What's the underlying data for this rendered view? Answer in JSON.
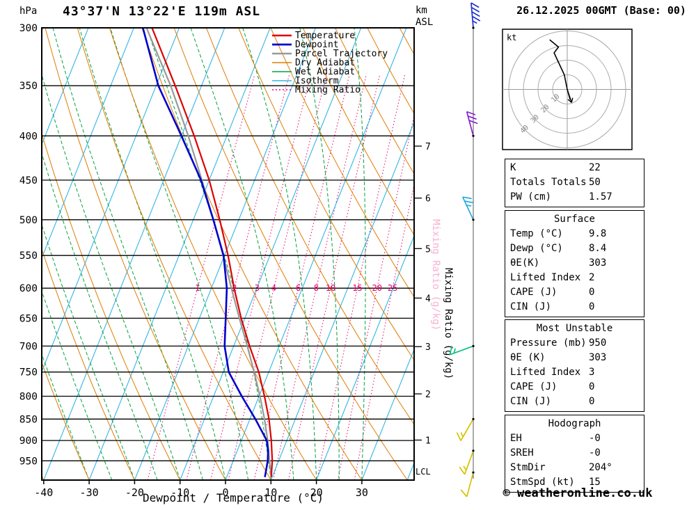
{
  "header": {
    "pressure_unit": "hPa",
    "station_title": "43°37'N 13°22'E 119m ASL",
    "altitude_unit_line1": "km",
    "altitude_unit_line2": "ASL",
    "run_title": "26.12.2025 00GMT (Base: 00)"
  },
  "chart_data": {
    "type": "line",
    "title": "Skew-T log-P sounding diagram",
    "xlabel": "Dewpoint / Temperature (°C)",
    "ylabel": "hPa",
    "pressure_range": [
      300,
      1000
    ],
    "pressure_ticks": [
      300,
      350,
      400,
      450,
      500,
      550,
      600,
      650,
      700,
      750,
      800,
      850,
      900,
      950
    ],
    "temp_ticks": [
      -40,
      -30,
      -20,
      -10,
      0,
      10,
      20,
      30
    ],
    "km_ticks": [
      {
        "km": 1,
        "p": 899
      },
      {
        "km": 2,
        "p": 795
      },
      {
        "km": 3,
        "p": 701
      },
      {
        "km": 4,
        "p": 616
      },
      {
        "km": 5,
        "p": 540
      },
      {
        "km": 6,
        "p": 472
      },
      {
        "km": 7,
        "p": 411
      }
    ],
    "lcl": {
      "label": "LCL",
      "p": 978
    },
    "mixing_ratio_values": [
      1,
      2,
      3,
      4,
      6,
      8,
      10,
      15,
      20,
      25
    ],
    "mixing_ratio_label_pressure": 600,
    "mixing_ratio_axis_label": "Mixing Ratio (g/kg)",
    "legend": [
      {
        "label": "Temperature",
        "color": "#dd0000",
        "width": 2.4,
        "dash": ""
      },
      {
        "label": "Dewpoint",
        "color": "#0000cc",
        "width": 2.8,
        "dash": ""
      },
      {
        "label": "Parcel Trajectory",
        "color": "#999999",
        "width": 2.4,
        "dash": ""
      },
      {
        "label": "Dry Adiabat",
        "color": "#e07b00",
        "width": 1.4,
        "dash": ""
      },
      {
        "label": "Wet Adiabat",
        "color": "#00a33c",
        "width": 1.4,
        "dash": ""
      },
      {
        "label": "Isotherm",
        "color": "#33b5e5",
        "width": 1.4,
        "dash": ""
      },
      {
        "label": "Mixing Ratio",
        "color": "#e5006e",
        "width": 1.4,
        "dash": "2,3"
      }
    ],
    "series": [
      {
        "name": "Temperature",
        "color": "#dd0000",
        "width": 2.2,
        "points": [
          [
            992,
            9.8
          ],
          [
            950,
            8.6
          ],
          [
            925,
            7.6
          ],
          [
            900,
            6.6
          ],
          [
            850,
            4.2
          ],
          [
            800,
            1.2
          ],
          [
            750,
            -2.2
          ],
          [
            700,
            -6.5
          ],
          [
            650,
            -10.8
          ],
          [
            600,
            -15.0
          ],
          [
            550,
            -19.2
          ],
          [
            500,
            -24.2
          ],
          [
            450,
            -30.0
          ],
          [
            400,
            -37.2
          ],
          [
            350,
            -45.8
          ],
          [
            300,
            -56.0
          ]
        ]
      },
      {
        "name": "Dewpoint",
        "color": "#0000cc",
        "width": 2.6,
        "points": [
          [
            992,
            8.4
          ],
          [
            950,
            7.6
          ],
          [
            925,
            6.8
          ],
          [
            900,
            5.6
          ],
          [
            850,
            1.2
          ],
          [
            800,
            -3.8
          ],
          [
            750,
            -8.8
          ],
          [
            700,
            -12.0
          ],
          [
            650,
            -14.2
          ],
          [
            600,
            -16.6
          ],
          [
            550,
            -20.2
          ],
          [
            500,
            -25.6
          ],
          [
            450,
            -31.8
          ],
          [
            400,
            -40.0
          ],
          [
            350,
            -49.5
          ],
          [
            300,
            -58.0
          ]
        ]
      },
      {
        "name": "Parcel Trajectory",
        "color": "#999999",
        "width": 2.2,
        "points": [
          [
            992,
            9.8
          ],
          [
            950,
            8.0
          ],
          [
            900,
            5.8
          ],
          [
            850,
            3.2
          ],
          [
            800,
            0.2
          ],
          [
            750,
            -3.2
          ],
          [
            700,
            -7.0
          ],
          [
            650,
            -11.2
          ],
          [
            600,
            -15.6
          ],
          [
            550,
            -20.3
          ],
          [
            500,
            -25.6
          ],
          [
            450,
            -31.6
          ],
          [
            400,
            -38.5
          ],
          [
            350,
            -46.8
          ],
          [
            300,
            -57.2
          ]
        ]
      }
    ],
    "colors": {
      "isotherm": "#33b5e5",
      "dry_adiabat": "#e07b00",
      "wet_adiabat": "#00a33c",
      "mixing_ratio": "#e5006e",
      "pressure_line": "#000000",
      "mixing_label_pink": "#f8b0d0"
    },
    "wind_barbs": [
      {
        "p": 300,
        "color": "#2233cc",
        "dir": 355,
        "speed": 45
      },
      {
        "p": 400,
        "color": "#8822cc",
        "dir": 345,
        "speed": 30
      },
      {
        "p": 500,
        "color": "#22aadd",
        "dir": 335,
        "speed": 25
      },
      {
        "p": 700,
        "color": "#11bb88",
        "dir": 250,
        "speed": 15
      },
      {
        "p": 850,
        "color": "#d4c400",
        "dir": 210,
        "speed": 15
      },
      {
        "p": 925,
        "color": "#d4c400",
        "dir": 200,
        "speed": 15
      },
      {
        "p": 980,
        "color": "#d4c400",
        "dir": 195,
        "speed": 10
      }
    ],
    "hodograph": {
      "unit_label": "kt",
      "rings": [
        10,
        20,
        30,
        40
      ],
      "trace_kt": [
        [
          2,
          -7
        ],
        [
          0,
          0
        ],
        [
          -2,
          10
        ],
        [
          -9,
          25
        ],
        [
          -6,
          29
        ],
        [
          -12,
          34
        ]
      ],
      "storm_arrow_kt": [
        3,
        -9
      ],
      "storm_dir_deg": 204,
      "storm_speed_kt": 15
    }
  },
  "tables": [
    {
      "title": "",
      "rows": [
        [
          "K",
          "22"
        ],
        [
          "Totals Totals",
          "50"
        ],
        [
          "PW (cm)",
          "1.57"
        ]
      ]
    },
    {
      "title": "Surface",
      "rows": [
        [
          "Temp (°C)",
          "9.8"
        ],
        [
          "Dewp (°C)",
          "8.4"
        ],
        [
          "θE(K)",
          "303"
        ],
        [
          "Lifted Index",
          "2"
        ],
        [
          "CAPE (J)",
          "0"
        ],
        [
          "CIN (J)",
          "0"
        ]
      ]
    },
    {
      "title": "Most Unstable",
      "rows": [
        [
          "Pressure (mb)",
          "950"
        ],
        [
          "θE (K)",
          "303"
        ],
        [
          "Lifted Index",
          "3"
        ],
        [
          "CAPE (J)",
          "0"
        ],
        [
          "CIN (J)",
          "0"
        ]
      ]
    },
    {
      "title": "Hodograph",
      "rows": [
        [
          "EH",
          "-0"
        ],
        [
          "SREH",
          "-0"
        ],
        [
          "StmDir",
          "204°"
        ],
        [
          "StmSpd (kt)",
          "15"
        ]
      ]
    }
  ],
  "footer": {
    "credit": "© weatheronline.co.uk"
  }
}
